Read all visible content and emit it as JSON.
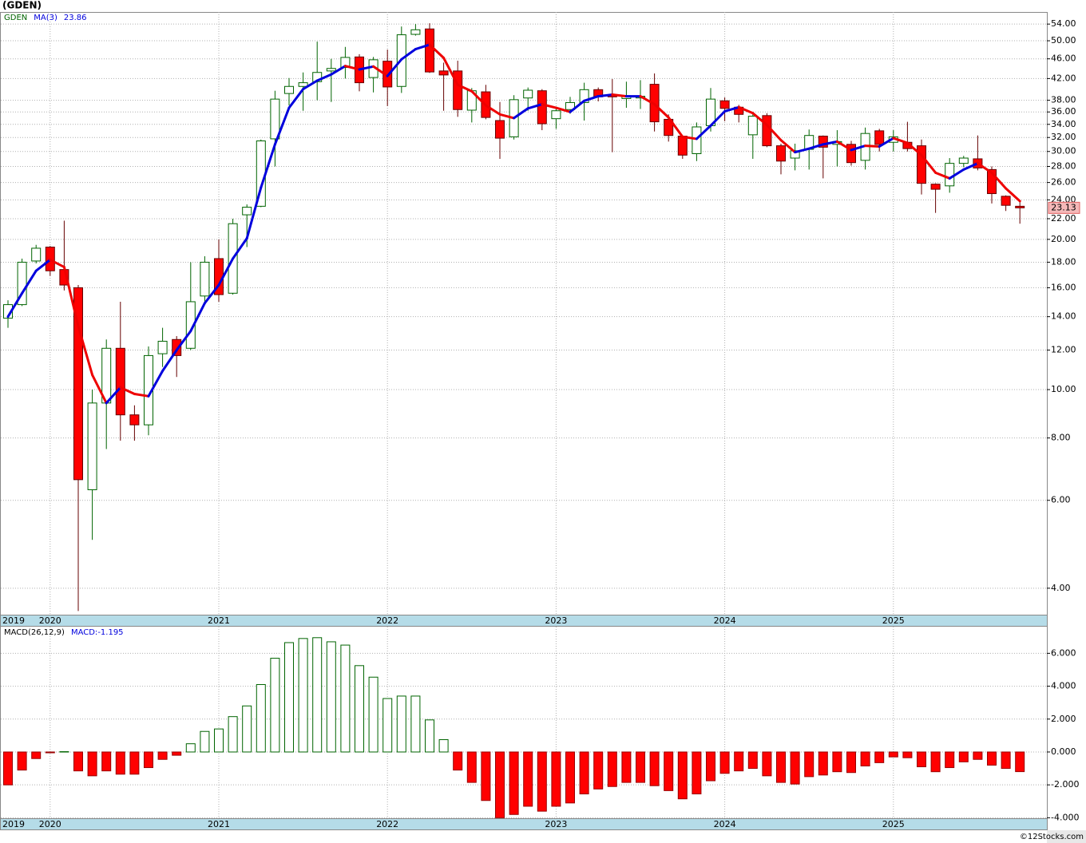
{
  "chart_data": [
    {
      "type": "candlestick",
      "title": "(GDEN)",
      "symbol": "GDEN",
      "log_scale": true,
      "grid": true,
      "up_color": "#006400",
      "down_color": "#ff0000",
      "categories": [
        "2019",
        null,
        null,
        "2020",
        null,
        null,
        null,
        null,
        null,
        null,
        null,
        null,
        null,
        null,
        null,
        "2021",
        null,
        null,
        null,
        null,
        null,
        null,
        null,
        null,
        null,
        null,
        null,
        "2022",
        null,
        null,
        null,
        null,
        null,
        null,
        null,
        null,
        null,
        null,
        null,
        "2023",
        null,
        null,
        null,
        null,
        null,
        null,
        null,
        null,
        null,
        null,
        null,
        "2024",
        null,
        null,
        null,
        null,
        null,
        null,
        null,
        null,
        null,
        null,
        null,
        "2025",
        null,
        null,
        null,
        null,
        null,
        null,
        null,
        null,
        null
      ],
      "open": [
        13.9,
        14.8,
        18.1,
        19.3,
        17.4,
        16.0,
        6.3,
        9.4,
        12.1,
        8.9,
        8.5,
        11.8,
        12.6,
        12.1,
        15.4,
        18.3,
        15.6,
        22.4,
        23.3,
        31.8,
        39.2,
        40.5,
        41.4,
        43.5,
        44.2,
        46.4,
        42.2,
        45.5,
        40.5,
        51.5,
        52.8,
        43.5,
        43.5,
        36.3,
        39.5,
        34.6,
        32.1,
        38.4,
        39.7,
        34.9,
        36.4,
        37.6,
        39.9,
        39.0,
        38.3,
        38.4,
        40.9,
        34.8,
        32.2,
        29.7,
        33.8,
        37.9,
        36.8,
        32.4,
        35.4,
        30.8,
        29.1,
        30.3,
        32.2,
        31.0,
        31.0,
        28.8,
        33.0,
        31.3,
        31.3,
        30.8,
        25.8,
        25.6,
        28.4,
        29.0,
        27.6,
        24.4,
        23.3
      ],
      "high": [
        15.1,
        18.3,
        19.5,
        19.4,
        21.8,
        16.2,
        10.0,
        12.6,
        15.0,
        9.3,
        12.2,
        13.3,
        12.8,
        18.0,
        18.5,
        20.0,
        22.0,
        23.5,
        31.7,
        39.7,
        42.1,
        43.2,
        49.8,
        46.0,
        48.6,
        47.0,
        46.4,
        48.0,
        53.4,
        54.0,
        54.2,
        45.2,
        45.6,
        40.2,
        40.8,
        37.7,
        38.9,
        40.3,
        40.0,
        36.8,
        38.6,
        41.2,
        40.3,
        41.9,
        41.4,
        41.7,
        43.0,
        35.6,
        32.3,
        34.3,
        40.2,
        38.5,
        37.2,
        35.9,
        35.8,
        31.1,
        31.1,
        33.2,
        32.3,
        33.1,
        31.5,
        33.5,
        33.3,
        33.1,
        34.4,
        31.7,
        25.9,
        29.1,
        29.4,
        32.3,
        28.0,
        24.5,
        23.8
      ],
      "low": [
        13.3,
        14.7,
        17.9,
        16.9,
        15.8,
        3.6,
        5.0,
        7.6,
        7.9,
        7.9,
        8.1,
        11.1,
        10.6,
        12.0,
        15.0,
        15.0,
        15.5,
        19.3,
        23.2,
        28.0,
        37.1,
        36.2,
        38.0,
        37.7,
        42.0,
        39.6,
        39.4,
        37.0,
        39.3,
        51.2,
        43.1,
        36.2,
        35.2,
        34.3,
        34.8,
        29.0,
        31.7,
        36.2,
        33.1,
        33.3,
        35.7,
        34.6,
        37.8,
        29.9,
        36.7,
        36.5,
        32.9,
        31.4,
        29.0,
        28.7,
        32.9,
        34.5,
        34.3,
        29.0,
        30.6,
        27.0,
        27.5,
        27.6,
        26.5,
        28.0,
        28.1,
        27.6,
        30.0,
        30.0,
        30.0,
        24.6,
        22.6,
        24.8,
        27.9,
        27.5,
        23.6,
        22.8,
        21.5
      ],
      "close": [
        14.8,
        18.0,
        19.2,
        17.3,
        16.2,
        6.6,
        9.4,
        12.1,
        8.9,
        8.5,
        11.7,
        12.5,
        11.7,
        15.0,
        18.0,
        15.5,
        21.5,
        23.2,
        31.5,
        38.2,
        40.5,
        41.2,
        43.2,
        44.0,
        46.3,
        41.2,
        45.8,
        40.4,
        51.4,
        52.6,
        43.3,
        42.7,
        36.4,
        39.7,
        35.1,
        31.9,
        38.1,
        39.8,
        34.1,
        36.2,
        37.6,
        39.9,
        38.6,
        38.6,
        38.8,
        38.7,
        34.4,
        32.3,
        29.5,
        33.6,
        38.2,
        36.6,
        35.6,
        35.3,
        30.8,
        28.7,
        30.1,
        32.3,
        30.6,
        31.4,
        28.5,
        32.6,
        31.0,
        32.1,
        30.4,
        25.9,
        25.2,
        28.4,
        29.1,
        27.8,
        24.7,
        23.4,
        23.13
      ],
      "ma": {
        "name": "MA(3)",
        "rise_color": "#0000dd",
        "fall_color": "#ee0000",
        "values": [
          14.0,
          15.6,
          17.3,
          18.2,
          17.6,
          13.4,
          10.7,
          9.4,
          10.1,
          9.8,
          9.7,
          10.9,
          12.0,
          13.1,
          14.9,
          16.2,
          18.3,
          20.1,
          25.4,
          31.0,
          36.7,
          40.0,
          41.6,
          42.8,
          44.5,
          43.8,
          44.4,
          42.5,
          45.9,
          48.1,
          49.1,
          46.2,
          40.8,
          39.6,
          37.1,
          35.6,
          35.0,
          36.6,
          37.3,
          36.7,
          36.0,
          37.9,
          38.7,
          39.0,
          38.7,
          38.7,
          37.3,
          35.1,
          32.1,
          31.8,
          33.8,
          36.1,
          36.8,
          35.8,
          33.9,
          31.6,
          29.9,
          30.4,
          31.0,
          31.4,
          30.2,
          30.8,
          30.7,
          31.9,
          31.2,
          29.5,
          27.2,
          26.5,
          27.6,
          28.4,
          27.2,
          25.3,
          23.86
        ]
      },
      "last_price": 23.13,
      "ylim": [
        3.54,
        57.1
      ],
      "yticks": [
        {
          "value": 4,
          "label": "4.00"
        },
        {
          "value": 6,
          "label": "6.00"
        },
        {
          "value": 8,
          "label": "8.00"
        },
        {
          "value": 10,
          "label": "10.00"
        },
        {
          "value": 12,
          "label": "12.00"
        },
        {
          "value": 14,
          "label": "14.00"
        },
        {
          "value": 16,
          "label": "16.00"
        },
        {
          "value": 18,
          "label": "18.00"
        },
        {
          "value": 20,
          "label": "20.00"
        },
        {
          "value": 22,
          "label": "22.00"
        },
        {
          "value": 24,
          "label": "24.00"
        },
        {
          "value": 26,
          "label": "26.00"
        },
        {
          "value": 28,
          "label": "28.00"
        },
        {
          "value": 30,
          "label": "30.00"
        },
        {
          "value": 32,
          "label": "32.00"
        },
        {
          "value": 34,
          "label": "34.00"
        },
        {
          "value": 36,
          "label": "36.00"
        },
        {
          "value": 38,
          "label": "38.00"
        },
        {
          "value": 42,
          "label": "42.00"
        },
        {
          "value": 46,
          "label": "46.00"
        },
        {
          "value": 50,
          "label": "50.00"
        },
        {
          "value": 54,
          "label": "54.00"
        }
      ]
    },
    {
      "type": "bar",
      "title": "MACD(26,12,9)",
      "value_name": "MACD:",
      "grid": true,
      "pos_color": "#006400",
      "neg_color": "#ff0000",
      "categories": [
        "2019",
        null,
        null,
        "2020",
        null,
        null,
        null,
        null,
        null,
        null,
        null,
        null,
        null,
        null,
        null,
        "2021",
        null,
        null,
        null,
        null,
        null,
        null,
        null,
        null,
        null,
        null,
        null,
        "2022",
        null,
        null,
        null,
        null,
        null,
        null,
        null,
        null,
        null,
        null,
        null,
        "2023",
        null,
        null,
        null,
        null,
        null,
        null,
        null,
        null,
        null,
        null,
        null,
        "2024",
        null,
        null,
        null,
        null,
        null,
        null,
        null,
        null,
        null,
        null,
        null,
        "2025",
        null,
        null,
        null,
        null,
        null,
        null,
        null,
        null,
        null
      ],
      "values": [
        -2.0,
        -1.1,
        -0.4,
        -0.05,
        0.02,
        -1.15,
        -1.45,
        -1.15,
        -1.35,
        -1.35,
        -0.95,
        -0.45,
        -0.2,
        0.5,
        1.25,
        1.4,
        2.15,
        2.8,
        4.1,
        5.7,
        6.65,
        6.9,
        6.95,
        6.7,
        6.5,
        5.25,
        4.55,
        3.25,
        3.4,
        3.4,
        1.95,
        0.75,
        -1.1,
        -1.85,
        -2.95,
        -4.0,
        -3.8,
        -3.3,
        -3.6,
        -3.3,
        -3.1,
        -2.55,
        -2.25,
        -2.1,
        -1.85,
        -1.85,
        -2.05,
        -2.35,
        -2.85,
        -2.55,
        -1.75,
        -1.3,
        -1.15,
        -1.0,
        -1.45,
        -1.85,
        -1.95,
        -1.5,
        -1.4,
        -1.2,
        -1.25,
        -0.85,
        -0.65,
        -0.3,
        -0.35,
        -0.9,
        -1.2,
        -0.95,
        -0.6,
        -0.45,
        -0.8,
        -1.0,
        -1.195
      ],
      "ylim": [
        -4.03,
        7.62
      ],
      "yticks": [
        {
          "value": -4,
          "label": "-4.000"
        },
        {
          "value": -2,
          "label": "-2.000"
        },
        {
          "value": 0,
          "label": "0.000"
        },
        {
          "value": 2,
          "label": "2.000"
        },
        {
          "value": 4,
          "label": "4.000"
        },
        {
          "value": 6,
          "label": "6.000"
        }
      ]
    }
  ],
  "footer": "©12Stocks.com"
}
